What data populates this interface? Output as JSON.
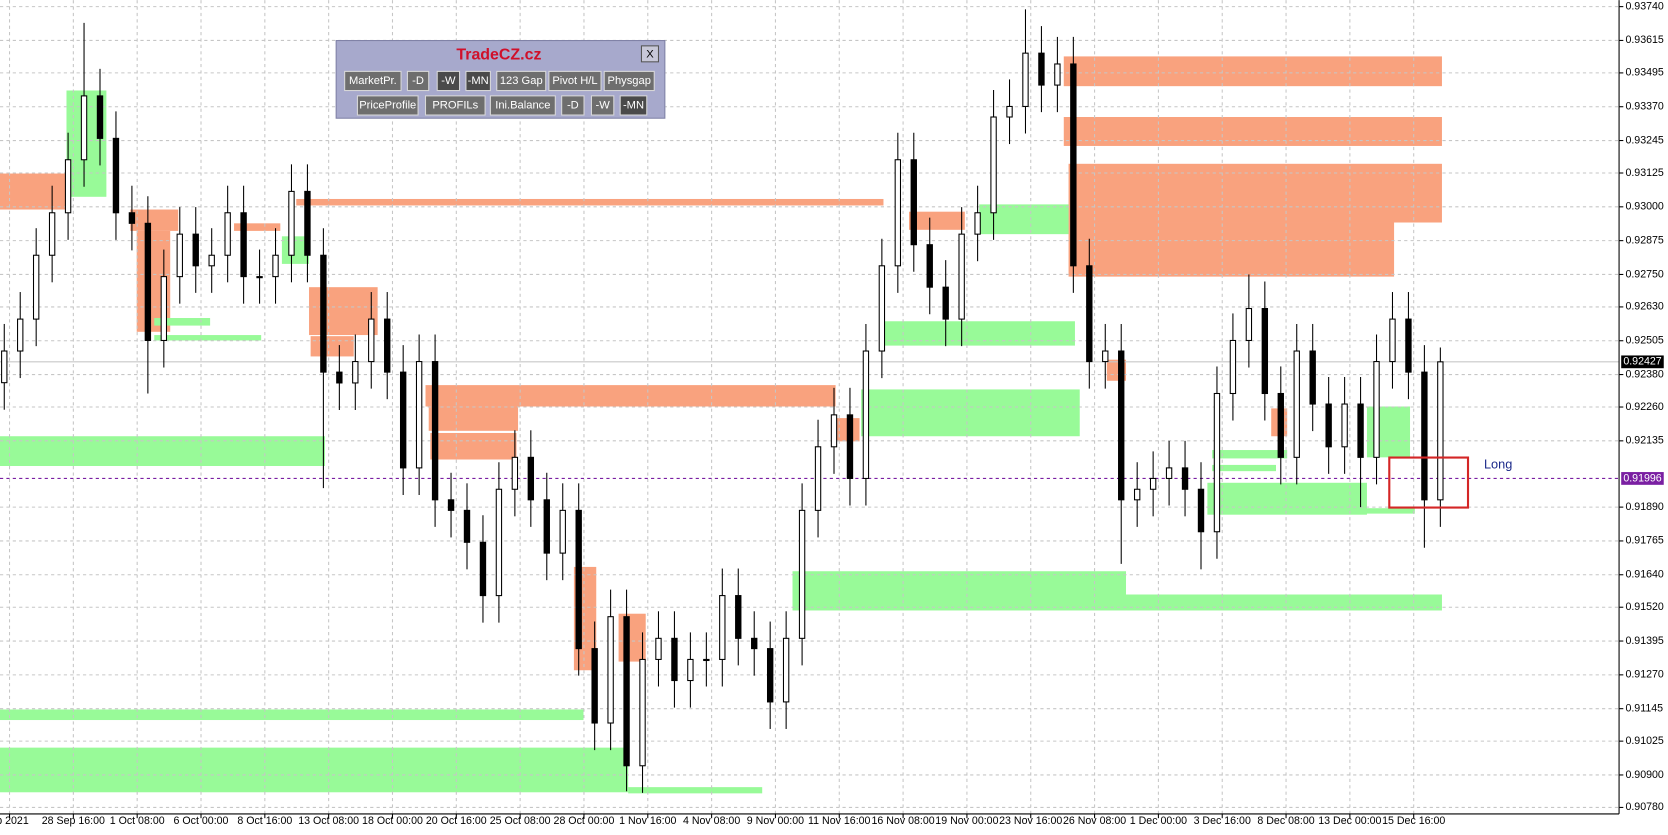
{
  "chart_data": {
    "type": "candlestick",
    "xlim": [
      -0.267,
      101.2
    ],
    "ylim": [
      0.90756,
      0.93764
    ],
    "yticks": [
      {
        "value": 0.9374,
        "label": "0.93740"
      },
      0.93615,
      0.93495,
      {
        "value": 0.9337,
        "label": "0.93370"
      },
      0.93245,
      0.93125,
      {
        "value": 0.93,
        "label": "0.93000"
      },
      0.92875,
      {
        "value": 0.9275,
        "label": "0.92750"
      },
      {
        "value": 0.9263,
        "label": "0.92630"
      },
      0.92505,
      {
        "value": 0.9238,
        "label": "0.92380"
      },
      {
        "value": 0.9226,
        "label": "0.92260"
      },
      0.92135,
      {
        "value": 0.9189,
        "label": "0.91890"
      },
      0.91765,
      {
        "value": 0.9164,
        "label": "0.91640"
      },
      {
        "value": 0.9152,
        "label": "0.91520"
      },
      0.91395,
      {
        "value": 0.9127,
        "label": "0.91270"
      },
      0.91145,
      0.91025,
      {
        "value": 0.909,
        "label": "0.90900"
      },
      {
        "value": 0.9078,
        "label": "0.90780"
      }
    ],
    "xticks": [
      {
        "value": 0.33,
        "label": "ep 2021"
      },
      {
        "value": 4.33,
        "label": "28 Sep 16:00"
      },
      {
        "value": 8.33,
        "label": "1 Oct 08:00"
      },
      {
        "value": 12.33,
        "label": "6 Oct 00:00"
      },
      {
        "value": 16.33,
        "label": "8 Oct 16:00"
      },
      {
        "value": 20.33,
        "label": "13 Oct 08:00"
      },
      {
        "value": 24.33,
        "label": "18 Oct 00:00"
      },
      {
        "value": 28.33,
        "label": "20 Oct 16:00"
      },
      {
        "value": 32.33,
        "label": "25 Oct 08:00"
      },
      {
        "value": 36.33,
        "label": "28 Oct 00:00"
      },
      {
        "value": 40.33,
        "label": "1 Nov 16:00"
      },
      {
        "value": 44.33,
        "label": "4 Nov 08:00"
      },
      {
        "value": 48.33,
        "label": "9 Nov 00:00"
      },
      {
        "value": 52.33,
        "label": "11 Nov 16:00"
      },
      {
        "value": 56.33,
        "label": "16 Nov 08:00"
      },
      {
        "value": 60.33,
        "label": "19 Nov 00:00"
      },
      {
        "value": 64.33,
        "label": "23 Nov 16:00"
      },
      {
        "value": 68.33,
        "label": "26 Nov 08:00"
      },
      {
        "value": 72.33,
        "label": "1 Dec 00:00"
      },
      {
        "value": 76.33,
        "label": "3 Dec 16:00"
      },
      {
        "value": 80.33,
        "label": "8 Dec 08:00"
      },
      {
        "value": 84.33,
        "label": "13 Dec 00:00"
      },
      {
        "value": 88.33,
        "label": "15 Dec 16:00"
      }
    ],
    "grid": true,
    "candle_color": "#000000",
    "ohlc": [
      [
        0.9235,
        0.92567,
        0.9225,
        0.92467
      ],
      [
        0.92467,
        0.92685,
        0.92367,
        0.92585
      ],
      [
        0.92585,
        0.92921,
        0.92485,
        0.92821
      ],
      [
        0.92821,
        0.93078,
        0.92721,
        0.92978
      ],
      [
        0.92978,
        0.93274,
        0.92878,
        0.93174
      ],
      [
        0.93174,
        0.9368,
        0.93074,
        0.9341
      ],
      [
        0.9341,
        0.9351,
        0.93153,
        0.93253
      ],
      [
        0.93253,
        0.93353,
        0.92878,
        0.92978
      ],
      [
        0.92978,
        0.93078,
        0.92839,
        0.92939
      ],
      [
        0.92939,
        0.93039,
        0.9231,
        0.92506
      ],
      [
        0.92506,
        0.92842,
        0.92406,
        0.92742
      ],
      [
        0.92742,
        0.92999,
        0.92642,
        0.92899
      ],
      [
        0.92899,
        0.92999,
        0.92682,
        0.92782
      ],
      [
        0.92782,
        0.92921,
        0.92682,
        0.92821
      ],
      [
        0.92821,
        0.93078,
        0.92721,
        0.92978
      ],
      [
        0.92978,
        0.93078,
        0.92642,
        0.92742
      ],
      [
        0.92742,
        0.92842,
        0.92642,
        0.92742
      ],
      [
        0.92742,
        0.92921,
        0.92642,
        0.92821
      ],
      [
        0.92821,
        0.93157,
        0.92721,
        0.93057
      ],
      [
        0.93057,
        0.93157,
        0.92721,
        0.92821
      ],
      [
        0.92821,
        0.92921,
        0.9196,
        0.92389
      ],
      [
        0.92389,
        0.92489,
        0.92249,
        0.92349
      ],
      [
        0.92349,
        0.92528,
        0.92249,
        0.92428
      ],
      [
        0.92428,
        0.92685,
        0.92328,
        0.92585
      ],
      [
        0.92585,
        0.92685,
        0.92289,
        0.92389
      ],
      [
        0.92389,
        0.92489,
        0.91935,
        0.92035
      ],
      [
        0.92035,
        0.92528,
        0.91935,
        0.92428
      ],
      [
        0.92428,
        0.92528,
        0.91817,
        0.91917
      ],
      [
        0.91917,
        0.92017,
        0.91778,
        0.91878
      ],
      [
        0.91878,
        0.91978,
        0.9166,
        0.9176
      ],
      [
        0.9176,
        0.9186,
        0.91463,
        0.91563
      ],
      [
        0.91563,
        0.92056,
        0.91463,
        0.91956
      ],
      [
        0.91956,
        0.92174,
        0.91856,
        0.92074
      ],
      [
        0.92074,
        0.92174,
        0.91817,
        0.91917
      ],
      [
        0.91917,
        0.92017,
        0.9162,
        0.9172
      ],
      [
        0.9172,
        0.91978,
        0.9162,
        0.91878
      ],
      [
        0.91878,
        0.91978,
        0.91267,
        0.91367
      ],
      [
        0.91367,
        0.91467,
        0.90992,
        0.91092
      ],
      [
        0.91092,
        0.91585,
        0.90992,
        0.91485
      ],
      [
        0.91485,
        0.91585,
        0.9084,
        0.90934
      ],
      [
        0.90934,
        0.91427,
        0.90834,
        0.91327
      ],
      [
        0.91327,
        0.91505,
        0.91227,
        0.91405
      ],
      [
        0.91405,
        0.91505,
        0.91149,
        0.91249
      ],
      [
        0.91249,
        0.91427,
        0.91149,
        0.91327
      ],
      [
        0.91327,
        0.91427,
        0.91227,
        0.91327
      ],
      [
        0.91327,
        0.91663,
        0.91227,
        0.91563
      ],
      [
        0.91563,
        0.91663,
        0.91305,
        0.91405
      ],
      [
        0.91405,
        0.91505,
        0.91267,
        0.91367
      ],
      [
        0.91367,
        0.91467,
        0.9107,
        0.9117
      ],
      [
        0.9117,
        0.91505,
        0.9107,
        0.91405
      ],
      [
        0.91405,
        0.91978,
        0.91305,
        0.91878
      ],
      [
        0.91878,
        0.92213,
        0.91778,
        0.92113
      ],
      [
        0.92113,
        0.92331,
        0.92013,
        0.92231
      ],
      [
        0.92231,
        0.92331,
        0.91896,
        0.91996
      ],
      [
        0.91996,
        0.92567,
        0.91896,
        0.92467
      ],
      [
        0.92467,
        0.92882,
        0.92367,
        0.92782
      ],
      [
        0.92782,
        0.93274,
        0.92682,
        0.93174
      ],
      [
        0.93174,
        0.93274,
        0.9276,
        0.9286
      ],
      [
        0.9286,
        0.9296,
        0.92603,
        0.92703
      ],
      [
        0.92703,
        0.92803,
        0.92485,
        0.92585
      ],
      [
        0.92585,
        0.92999,
        0.92485,
        0.92899
      ],
      [
        0.92899,
        0.93078,
        0.92799,
        0.92978
      ],
      [
        0.92978,
        0.93432,
        0.92878,
        0.93332
      ],
      [
        0.93332,
        0.93471,
        0.93232,
        0.93371
      ],
      [
        0.93371,
        0.9373,
        0.93271,
        0.93568
      ],
      [
        0.93568,
        0.93668,
        0.9335,
        0.9345
      ],
      [
        0.9345,
        0.93628,
        0.9335,
        0.93528
      ],
      [
        0.93528,
        0.93628,
        0.92682,
        0.92782
      ],
      [
        0.92782,
        0.92882,
        0.92328,
        0.92428
      ],
      [
        0.92428,
        0.92567,
        0.92328,
        0.92467
      ],
      [
        0.92467,
        0.92567,
        0.9168,
        0.91917
      ],
      [
        0.91917,
        0.92056,
        0.91817,
        0.91956
      ],
      [
        0.91956,
        0.92096,
        0.91856,
        0.91996
      ],
      [
        0.91996,
        0.92135,
        0.91896,
        0.92035
      ],
      [
        0.92035,
        0.92135,
        0.91856,
        0.91956
      ],
      [
        0.91956,
        0.92056,
        0.9166,
        0.91799
      ],
      [
        0.91799,
        0.9241,
        0.91699,
        0.9231
      ],
      [
        0.9231,
        0.92606,
        0.9221,
        0.92506
      ],
      [
        0.92506,
        0.9275,
        0.92406,
        0.92624
      ],
      [
        0.92624,
        0.92724,
        0.9221,
        0.9231
      ],
      [
        0.9231,
        0.9241,
        0.91974,
        0.92074
      ],
      [
        0.92074,
        0.92567,
        0.91974,
        0.92467
      ],
      [
        0.92467,
        0.92567,
        0.92171,
        0.92271
      ],
      [
        0.92271,
        0.92371,
        0.92013,
        0.92113
      ],
      [
        0.92113,
        0.92371,
        0.92013,
        0.92271
      ],
      [
        0.92271,
        0.92371,
        0.9189,
        0.92074
      ],
      [
        0.92074,
        0.92528,
        0.91974,
        0.92428
      ],
      [
        0.92428,
        0.92685,
        0.92328,
        0.92585
      ],
      [
        0.92585,
        0.92685,
        0.92289,
        0.92389
      ],
      [
        0.92389,
        0.92489,
        0.9174,
        0.91917
      ],
      [
        0.91917,
        0.9248,
        0.91817,
        0.92427
      ]
    ],
    "zones": [
      {
        "color": "#f9a27e",
        "boxes": [
          [
            -0.3,
            4.0,
            0.93123,
            0.9299
          ],
          [
            7.9,
            10.9,
            0.9299,
            0.92911
          ],
          [
            8.3,
            10.4,
            0.92911,
            0.92538
          ],
          [
            14.4,
            17.3,
            0.92939,
            0.92911
          ],
          [
            18.3,
            55.1,
            0.93029,
            0.93005
          ],
          [
            19.1,
            23.4,
            0.92703,
            0.92526
          ],
          [
            19.2,
            21.9,
            0.92522,
            0.92447
          ],
          [
            26.4,
            52.1,
            0.92341,
            0.92262
          ],
          [
            26.6,
            32.2,
            0.92262,
            0.92172
          ],
          [
            26.7,
            32.1,
            0.92164,
            0.92066
          ],
          [
            35.7,
            37.1,
            0.91669,
            0.91287
          ],
          [
            38.5,
            40.2,
            0.91496,
            0.91319
          ],
          [
            52.1,
            53.6,
            0.92219,
            0.92133
          ],
          [
            56.7,
            60.2,
            0.92982,
            0.92915
          ],
          [
            66.4,
            90.1,
            0.93556,
            0.93446
          ],
          [
            66.4,
            90.1,
            0.93332,
            0.93225
          ],
          [
            66.7,
            90.1,
            0.93159,
            0.92942
          ],
          [
            66.7,
            87.1,
            0.92942,
            0.92742
          ],
          [
            69.1,
            70.3,
            0.92435,
            0.92357
          ],
          [
            79.4,
            80.4,
            0.92255,
            0.92152
          ]
        ]
      },
      {
        "color": "#98fa98",
        "boxes": [
          [
            -0.3,
            20.1,
            0.92152,
            0.92042
          ],
          [
            3.9,
            6.4,
            0.9343,
            0.93037
          ],
          [
            9.4,
            12.9,
            0.92589,
            0.92561
          ],
          [
            9.4,
            16.1,
            0.92526,
            0.92506
          ],
          [
            17.4,
            19.1,
            0.92891,
            0.92789
          ],
          [
            -0.3,
            36.3,
            0.91142,
            0.91103
          ],
          [
            -0.3,
            39.1,
            0.91001,
            0.90836
          ],
          [
            39.1,
            47.5,
            0.90855,
            0.90832
          ],
          [
            49.4,
            70.3,
            0.91653,
            0.91508
          ],
          [
            70.3,
            90.1,
            0.91567,
            0.91508
          ],
          [
            53.7,
            67.4,
            0.92325,
            0.92152
          ],
          [
            54.9,
            67.1,
            0.92577,
            0.92487
          ],
          [
            61.1,
            66.7,
            0.93009,
            0.92899
          ],
          [
            75.4,
            85.4,
            0.9198,
            0.91862
          ],
          [
            75.7,
            80.4,
            0.92101,
            0.9207
          ],
          [
            75.7,
            79.7,
            0.92046,
            0.92023
          ],
          [
            85.4,
            88.1,
            0.92262,
            0.92074
          ],
          [
            85.1,
            88.4,
            0.91886,
            0.91866
          ]
        ]
      }
    ],
    "price_lines": [
      {
        "value": 0.92427,
        "color": "#c8c8c8",
        "label_color": "#000000",
        "dashed": false
      },
      {
        "value": 0.91996,
        "color": "#7a1fa2",
        "label_color": "#7a1fa2",
        "dashed": true
      }
    ],
    "annotation": "Long"
  },
  "panel": {
    "title": "TradeCZ.cz",
    "close": "X",
    "row1": [
      "MarketPr.",
      "-D",
      "-W",
      "-MN",
      "123 Gap",
      "Pivot H/L",
      "Physgap"
    ],
    "row2": [
      "PriceProfile",
      "PROFILs",
      "Ini.Balance",
      "-D",
      "-W",
      "-MN"
    ]
  }
}
